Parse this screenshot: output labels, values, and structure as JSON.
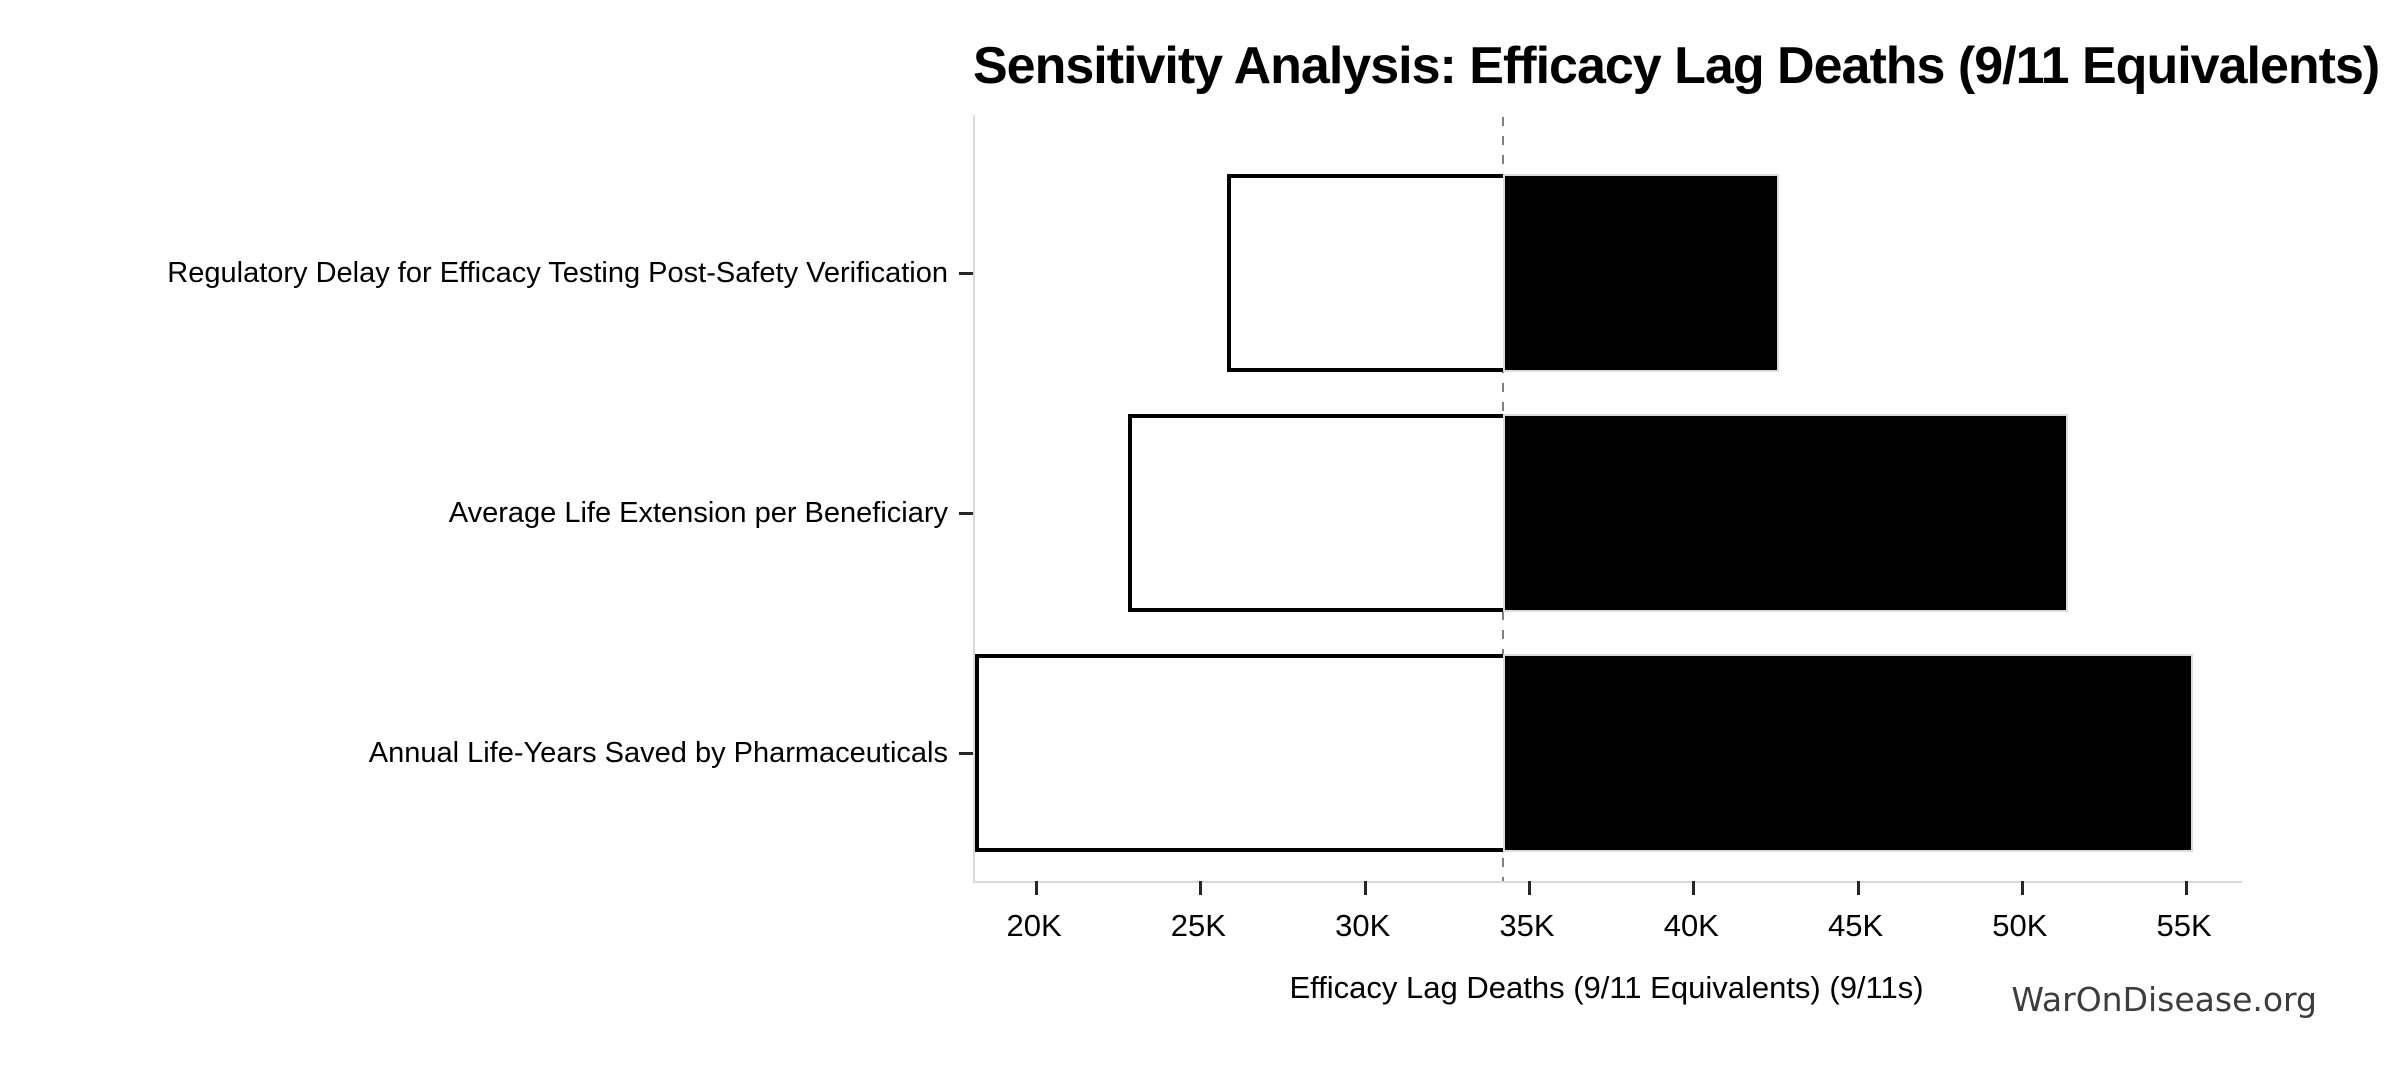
{
  "watermark": "WarOnDisease.org",
  "chart_data": {
    "type": "bar",
    "orientation": "horizontal",
    "variant": "tornado-sensitivity",
    "title": "Sensitivity Analysis: Efficacy Lag Deaths (9/11 Equivalents)",
    "xlabel": "Efficacy Lag Deaths (9/11 Equivalents) (9/11s)",
    "ylabel": "",
    "categories": [
      "Regulatory Delay for Efficacy Testing Post-Safety Verification",
      "Average Life Extension per Beneficiary",
      "Annual Life-Years Saved by Pharmaceuticals"
    ],
    "bars": [
      {
        "category": "Regulatory Delay for Efficacy Testing Post-Safety Verification",
        "low": 25800,
        "high": 42600
      },
      {
        "category": "Average Life Extension per Beneficiary",
        "low": 22800,
        "high": 51400
      },
      {
        "category": "Annual Life-Years Saved by Pharmaceuticals",
        "low": 18140,
        "high": 55200
      }
    ],
    "baseline": 34200,
    "xlim": [
      18140,
      56700
    ],
    "xticks": [
      {
        "value": 20000,
        "label": "20K"
      },
      {
        "value": 25000,
        "label": "25K"
      },
      {
        "value": 30000,
        "label": "30K"
      },
      {
        "value": 35000,
        "label": "35K"
      },
      {
        "value": 40000,
        "label": "40K"
      },
      {
        "value": 45000,
        "label": "45K"
      },
      {
        "value": 50000,
        "label": "50K"
      },
      {
        "value": 55000,
        "label": "55K"
      }
    ],
    "grid": false,
    "legend": false,
    "colors": {
      "low_fill": "#ffffff",
      "low_edge": "#000000",
      "high_fill": "#000000",
      "high_edge": "#dcdcdc",
      "baseline_line": "#7f7f7f",
      "spine": "#d9d9d9",
      "tick": "#262626",
      "text": "#000000",
      "watermark": "#3d3d3d"
    }
  }
}
